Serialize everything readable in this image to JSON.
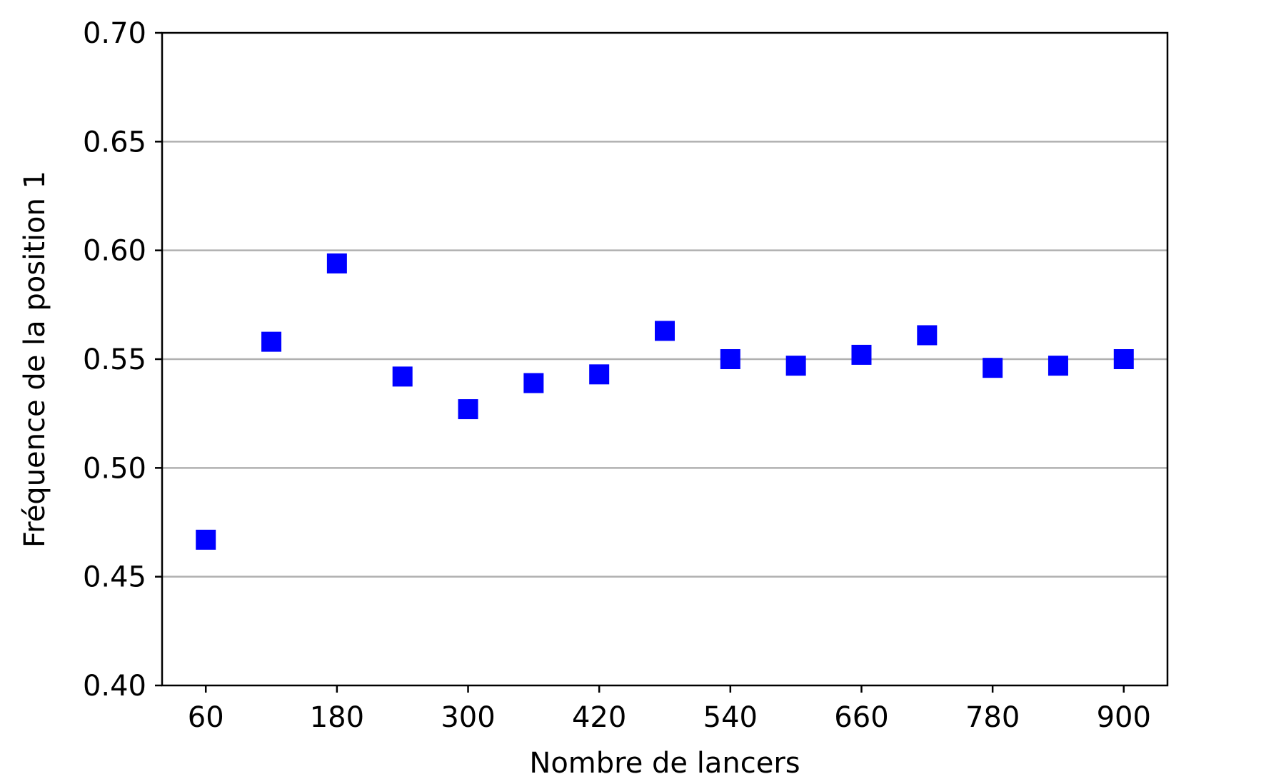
{
  "chart_data": {
    "type": "scatter",
    "title": "",
    "xlabel": "Nombre de lancers",
    "ylabel": "Fréquence de la position 1",
    "xlim": [
      20,
      940
    ],
    "ylim": [
      0.4,
      0.7
    ],
    "xticks": [
      60,
      180,
      300,
      420,
      540,
      660,
      780,
      900
    ],
    "xtick_labels": [
      "60",
      "180",
      "300",
      "420",
      "540",
      "660",
      "780",
      "900"
    ],
    "yticks": [
      0.4,
      0.45,
      0.5,
      0.55,
      0.6,
      0.65,
      0.7
    ],
    "ytick_labels": [
      "0.40",
      "0.45",
      "0.50",
      "0.55",
      "0.60",
      "0.65",
      "0.70"
    ],
    "grid": "horizontal",
    "marker": "square",
    "marker_color": "#0000ff",
    "series": [
      {
        "x": [
          60,
          120,
          180,
          240,
          300,
          360,
          420,
          480,
          540,
          600,
          660,
          720,
          780,
          840,
          900
        ],
        "y": [
          0.467,
          0.558,
          0.594,
          0.542,
          0.527,
          0.539,
          0.543,
          0.563,
          0.55,
          0.547,
          0.552,
          0.561,
          0.546,
          0.547,
          0.55
        ]
      }
    ]
  }
}
